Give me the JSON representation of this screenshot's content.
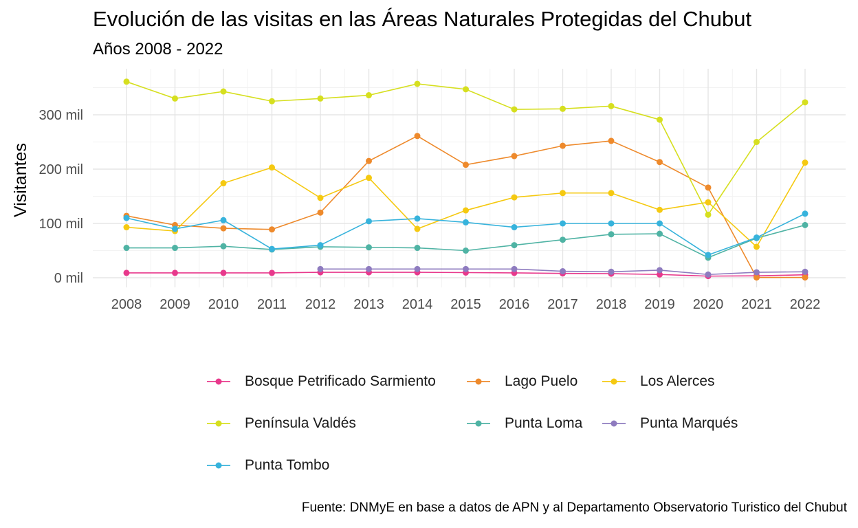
{
  "chart_data": {
    "type": "line",
    "title": "Evolución de las visitas en las Áreas Naturales Protegidas del Chubut",
    "subtitle": "Años 2008 - 2022",
    "caption": "Fuente: DNMyE en base a datos de APN y al Departamento Observatorio Turistico del Chubut",
    "ylabel": "Visitantes",
    "xlabel": "",
    "x": [
      2008,
      2009,
      2010,
      2011,
      2012,
      2013,
      2014,
      2015,
      2016,
      2017,
      2018,
      2019,
      2020,
      2021,
      2022
    ],
    "ylim": [
      -10000,
      375000
    ],
    "yticks": [
      0,
      100000,
      200000,
      300000
    ],
    "ytick_labels": [
      "0 mil",
      "100 mil",
      "200 mil",
      "300 mil"
    ],
    "grid": true,
    "legend_position": "bottom",
    "series": [
      {
        "name": "Bosque Petrificado Sarmiento",
        "color": "#e8398c",
        "values": [
          9000,
          9000,
          9000,
          9000,
          10000,
          10000,
          10000,
          9500,
          9000,
          8000,
          7500,
          6000,
          3000,
          3500,
          5500
        ]
      },
      {
        "name": "Lago Puelo",
        "color": "#ee8a2c",
        "values": [
          114000,
          97000,
          91000,
          89000,
          120000,
          215000,
          261000,
          208000,
          224000,
          243000,
          252000,
          213000,
          166000,
          500,
          500
        ]
      },
      {
        "name": "Los Alerces",
        "color": "#f5c911",
        "values": [
          93000,
          86000,
          174000,
          203000,
          147000,
          184000,
          90000,
          124000,
          148000,
          156000,
          156000,
          125000,
          139000,
          57000,
          212000
        ]
      },
      {
        "name": "Península Valdés",
        "color": "#d6df1f",
        "values": [
          361000,
          330000,
          343000,
          325000,
          330000,
          336000,
          357000,
          347000,
          310000,
          311000,
          316000,
          291000,
          116000,
          250000,
          323000
        ]
      },
      {
        "name": "Punta Loma",
        "color": "#4fb3a4",
        "values": [
          55000,
          55000,
          58000,
          52000,
          57000,
          56000,
          55000,
          50000,
          60000,
          70000,
          80000,
          81000,
          37000,
          73000,
          97000
        ]
      },
      {
        "name": "Punta Marqués",
        "color": "#8e7bbf",
        "values": [
          null,
          null,
          null,
          null,
          16000,
          16000,
          16000,
          16000,
          16000,
          12000,
          11000,
          14000,
          6000,
          10000,
          11000
        ]
      },
      {
        "name": "Punta Tombo",
        "color": "#37b3dc",
        "values": [
          110000,
          90000,
          106000,
          53000,
          60000,
          104000,
          109000,
          102000,
          93000,
          100000,
          100000,
          100000,
          42000,
          74000,
          118000
        ]
      }
    ]
  }
}
